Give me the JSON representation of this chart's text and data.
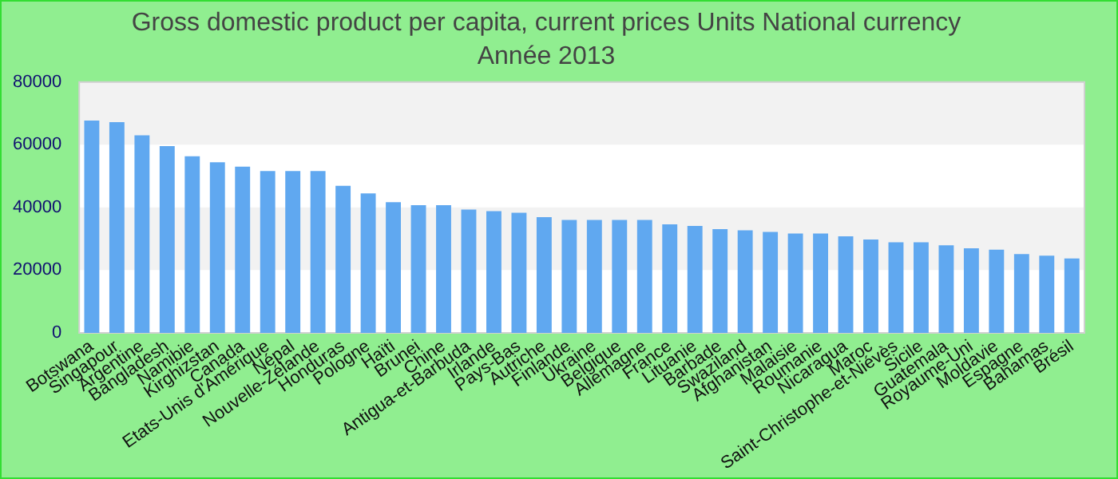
{
  "chart_data": {
    "type": "bar",
    "title": "Gross domestic product per capita, current prices Units National currency",
    "subtitle": "Année 2013",
    "categories": [
      "Botswana",
      "Singapour",
      "Argentine",
      "Bangladesh",
      "Namibie",
      "Kirghizstan",
      "Canada",
      "Etats-Unis d'Amérique",
      "Népal",
      "Nouvelle-Zélande",
      "Honduras",
      "Pologne",
      "Haïti",
      "Brunei",
      "Chine",
      "Antigua-et-Barbuda",
      "Irlande",
      "Pays-Bas",
      "Autriche",
      "Finlande",
      "Ukraine",
      "Belgique",
      "Allemagne",
      "France",
      "Lituanie",
      "Barbade",
      "Swaziland",
      "Afghanistan",
      "Malaisie",
      "Roumanie",
      "Nicaragua",
      "Maroc",
      "Saint-Christophe-et-Niévès",
      "Sicile",
      "Guatemala",
      "Royaume-Uni",
      "Moldavie",
      "Espagne",
      "Bahamas",
      "Brésil"
    ],
    "values": [
      67700,
      67200,
      63000,
      59600,
      56300,
      54400,
      53000,
      51600,
      51600,
      51600,
      46900,
      44500,
      41700,
      40700,
      40700,
      39300,
      38800,
      38300,
      36900,
      36000,
      36000,
      36000,
      36000,
      34600,
      34100,
      33100,
      32700,
      32200,
      31700,
      31700,
      30800,
      29800,
      28900,
      28900,
      27900,
      27000,
      26500,
      25100,
      24600,
      23700
    ],
    "color": "#60a8f0",
    "ylim": [
      0,
      80000
    ],
    "yticks": [
      0,
      20000,
      40000,
      60000,
      80000
    ],
    "bands": [
      {
        "axis": "y",
        "from": 20000,
        "to": 40000,
        "color": "#f2f2f2"
      },
      {
        "axis": "y",
        "from": 60000,
        "to": 80000,
        "color": "#f2f2f2"
      }
    ]
  }
}
